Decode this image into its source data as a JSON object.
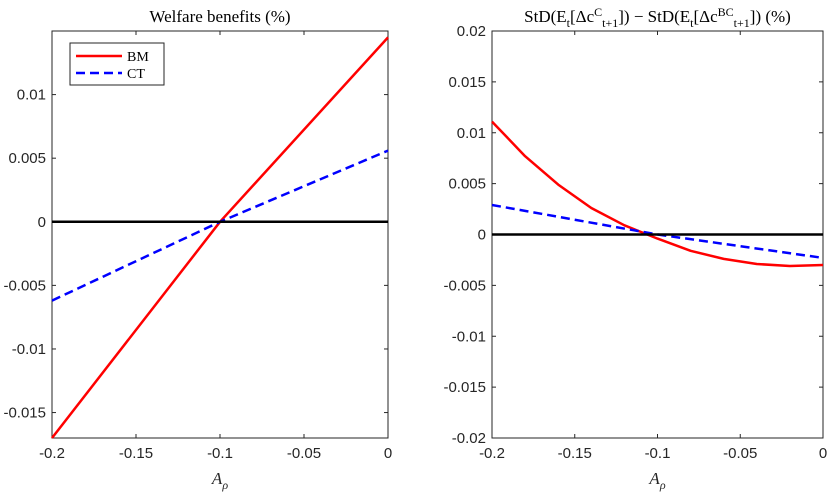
{
  "chart_data": [
    {
      "type": "line",
      "title": "Welfare benefits (%)",
      "xlabel": "A_ρ",
      "xlabel_main": "A",
      "xlabel_sub": "ρ",
      "ylabel": "",
      "xlim": [
        -0.2,
        0
      ],
      "ylim": [
        -0.017,
        0.015
      ],
      "xticks": [
        -0.2,
        -0.15,
        -0.1,
        -0.05,
        0
      ],
      "xtick_labels": [
        "-0.2",
        "-0.15",
        "-0.1",
        "-0.05",
        "0"
      ],
      "yticks": [
        -0.015,
        -0.01,
        -0.005,
        0,
        0.005,
        0.01
      ],
      "ytick_labels": [
        "-0.015",
        "-0.01",
        "-0.005",
        "0",
        "0.005",
        "0.01"
      ],
      "grid": false,
      "legend": "top-left",
      "series": [
        {
          "name": "BM",
          "color": "#ff0000",
          "style": "solid",
          "x": [
            -0.2,
            -0.1,
            0
          ],
          "y": [
            -0.017,
            0.0,
            0.0145
          ]
        },
        {
          "name": "CT",
          "color": "#0000ff",
          "style": "dashed",
          "x": [
            -0.2,
            -0.1,
            0
          ],
          "y": [
            -0.0062,
            0.0,
            0.0056
          ]
        },
        {
          "name": "",
          "color": "#000000",
          "style": "solid",
          "x": [
            -0.2,
            0
          ],
          "y": [
            0,
            0
          ]
        }
      ]
    },
    {
      "type": "line",
      "title_parts": [
        "StD(E",
        "t",
        "[Δc",
        "C",
        "t+1",
        "]) − StD(E",
        "t",
        "[Δc",
        "BC",
        "t+1",
        "]) (%)"
      ],
      "xlabel": "A_ρ",
      "xlabel_main": "A",
      "xlabel_sub": "ρ",
      "ylabel": "",
      "xlim": [
        -0.2,
        0
      ],
      "ylim": [
        -0.02,
        0.02
      ],
      "xticks": [
        -0.2,
        -0.15,
        -0.1,
        -0.05,
        0
      ],
      "xtick_labels": [
        "-0.2",
        "-0.15",
        "-0.1",
        "-0.05",
        "0"
      ],
      "yticks": [
        -0.02,
        -0.015,
        -0.01,
        -0.005,
        0,
        0.005,
        0.01,
        0.015,
        0.02
      ],
      "ytick_labels": [
        "-0.02",
        "-0.015",
        "-0.01",
        "-0.005",
        "0",
        "0.005",
        "0.01",
        "0.015",
        "0.02"
      ],
      "grid": false,
      "series": [
        {
          "name": "BM",
          "color": "#ff0000",
          "style": "solid",
          "x": [
            -0.2,
            -0.18,
            -0.16,
            -0.14,
            -0.12,
            -0.1,
            -0.08,
            -0.06,
            -0.04,
            -0.02,
            0
          ],
          "y": [
            0.0111,
            0.0077,
            0.0049,
            0.0026,
            0.0009,
            -0.0004,
            -0.0016,
            -0.0024,
            -0.0029,
            -0.0031,
            -0.003
          ]
        },
        {
          "name": "CT",
          "color": "#0000ff",
          "style": "dashed",
          "x": [
            -0.2,
            -0.1,
            0
          ],
          "y": [
            0.0029,
            0.0,
            -0.0023
          ]
        },
        {
          "name": "",
          "color": "#000000",
          "style": "solid",
          "x": [
            -0.2,
            0
          ],
          "y": [
            0,
            0
          ]
        }
      ]
    }
  ]
}
